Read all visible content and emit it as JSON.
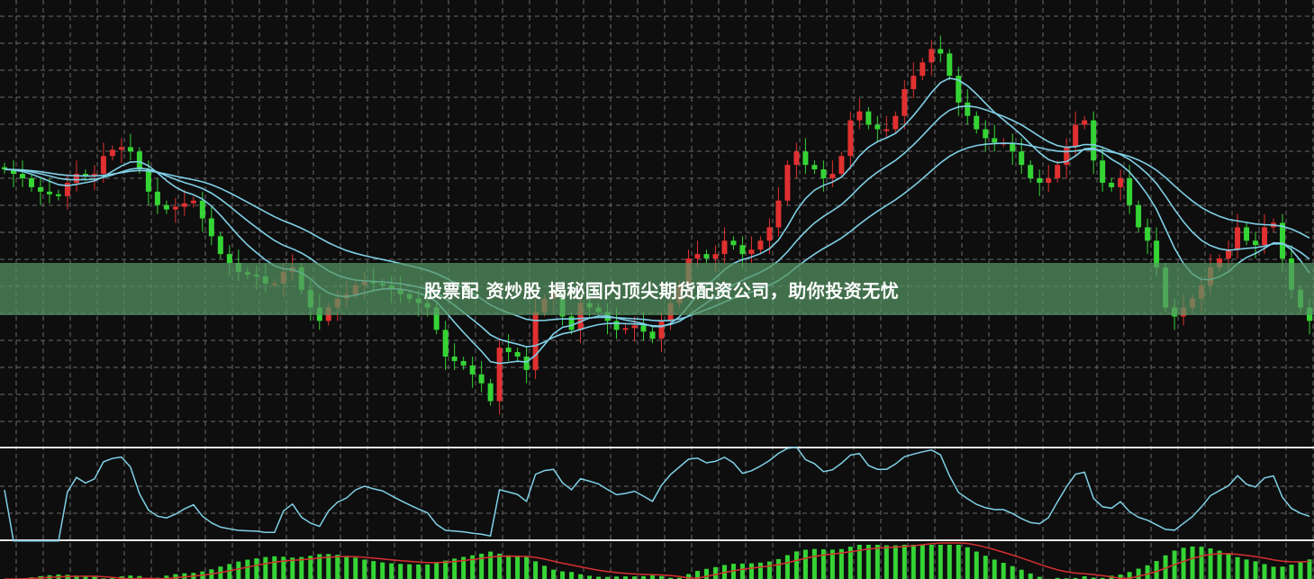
{
  "banner": {
    "text": "股票配 资炒股 揭秘国内顶尖期货配资公司，助你投资无忧"
  },
  "colors": {
    "background": "#0e0e0e",
    "grid": "#6a6a6a",
    "up": "#e03030",
    "down": "#35d435",
    "ma": "#7fd0e6",
    "separator": "#e8e8e8",
    "banner": "#58966a",
    "signal": "#d83030"
  },
  "chart_data": {
    "type": "candlestick",
    "title": "",
    "xlabel": "",
    "ylabel": "",
    "ylim": [
      0,
      100
    ],
    "grid": true,
    "legend": "none",
    "indicators": [
      "moving-averages",
      "oscillator-line",
      "macd-histogram"
    ],
    "closes": [
      62,
      61,
      60,
      58,
      57,
      56.4,
      56,
      59,
      61,
      60.4,
      61,
      65,
      66.4,
      67,
      66,
      62,
      57,
      54,
      53,
      53.6,
      54.4,
      55,
      51,
      47,
      43,
      41,
      39,
      38.4,
      38,
      36.4,
      36.4,
      39,
      40,
      35,
      31,
      28,
      31,
      33,
      34,
      36,
      37,
      36.4,
      36,
      35,
      34,
      33,
      32,
      31,
      26,
      20,
      19,
      18,
      16,
      14,
      10,
      22,
      21,
      20,
      17,
      30,
      33,
      34,
      29,
      26,
      32,
      31,
      30,
      28,
      26,
      26.4,
      27,
      25.6,
      24,
      28,
      32,
      36,
      42,
      43,
      42,
      43,
      46,
      45,
      43,
      44,
      46,
      49,
      55,
      63,
      66,
      63,
      62,
      60,
      61,
      65,
      73,
      75,
      72,
      71,
      71,
      74,
      80,
      83,
      86,
      89,
      88,
      83,
      77,
      74,
      71,
      69,
      68,
      68,
      66,
      63,
      60,
      59,
      60,
      63,
      67,
      72,
      73,
      64,
      59,
      58,
      60,
      54,
      49,
      46,
      40,
      31,
      29,
      31,
      33,
      36,
      40,
      42,
      44,
      49,
      46,
      45,
      49,
      50,
      42,
      35,
      31,
      28
    ]
  }
}
